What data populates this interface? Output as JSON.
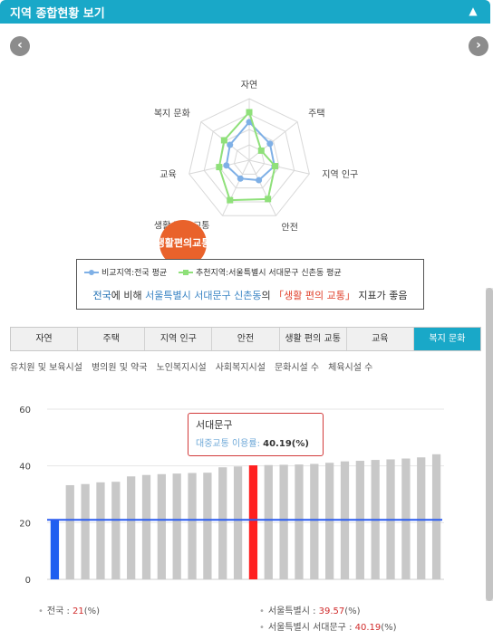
{
  "header": {
    "title": "지역 종합현황 보기",
    "toggle_icon": "▲"
  },
  "nav": {
    "prev": "‹",
    "next": "›"
  },
  "radar": {
    "axes": [
      "자연",
      "주택",
      "지역 인구",
      "안전",
      "생활 편의 교통",
      "교육",
      "복지 문화"
    ],
    "compare_values": [
      0.62,
      0.43,
      0.42,
      0.36,
      0.33,
      0.38,
      0.4
    ],
    "target_values": [
      0.78,
      0.25,
      0.43,
      0.7,
      0.72,
      0.5,
      0.52
    ],
    "compare_color": "#7fb0e6",
    "target_color": "#8fe07a"
  },
  "badge": {
    "text": "생활편의교통"
  },
  "legend": {
    "compare_label": "비교지역:전국 평균",
    "target_label": "추천지역:서울특별시 서대문구 신촌동 평균",
    "summary": {
      "part1": "전국",
      "part2": "에 비해 ",
      "part3": "서울특별시 서대문구 신촌동",
      "part4": "의 ",
      "part5": "「생활 편의 교통」",
      "part6": " 지표가 좋음"
    }
  },
  "tabs": [
    {
      "label": "자연",
      "active": false
    },
    {
      "label": "주택",
      "active": false
    },
    {
      "label": "지역 인구",
      "active": false
    },
    {
      "label": "안전",
      "active": false
    },
    {
      "label": "생활 편의 교통",
      "active": false
    },
    {
      "label": "교육",
      "active": false
    },
    {
      "label": "복지 문화",
      "active": true
    }
  ],
  "subcategories": [
    "유치원 및 보육시설",
    "병의원 및 약국",
    "노인복지시설",
    "사회복지시설",
    "문화시설 수",
    "체육시설 수"
  ],
  "chart_data": {
    "type": "bar",
    "ylim": [
      0,
      60
    ],
    "yticks": [
      0,
      20,
      40,
      60
    ],
    "values": [
      21,
      33.2,
      33.6,
      34.2,
      34.4,
      36.3,
      36.8,
      37.1,
      37.3,
      37.5,
      37.6,
      39.5,
      39.8,
      40.19,
      40.3,
      40.4,
      40.5,
      40.7,
      41.1,
      41.6,
      41.8,
      42.1,
      42.3,
      42.6,
      43.0,
      44.1
    ],
    "highlight": {
      "index": 13,
      "color": "#ff2020"
    },
    "first_bar_color": "#1f5ff0",
    "bar_color": "#c8c8c8",
    "reference": {
      "value": 21,
      "color": "#2b5cf0"
    }
  },
  "tooltip": {
    "title": "서대문구",
    "label": "대중교통 이용률: ",
    "value": "40.19(%)"
  },
  "footnotes": [
    {
      "label": "전국 : ",
      "value": "21",
      "unit": "(%)"
    },
    {
      "label": "서울특별시 : ",
      "value": "39.57",
      "unit": "(%)"
    },
    {
      "label": "서울특별시 서대문구 : ",
      "value": "40.19",
      "unit": "(%)"
    }
  ]
}
